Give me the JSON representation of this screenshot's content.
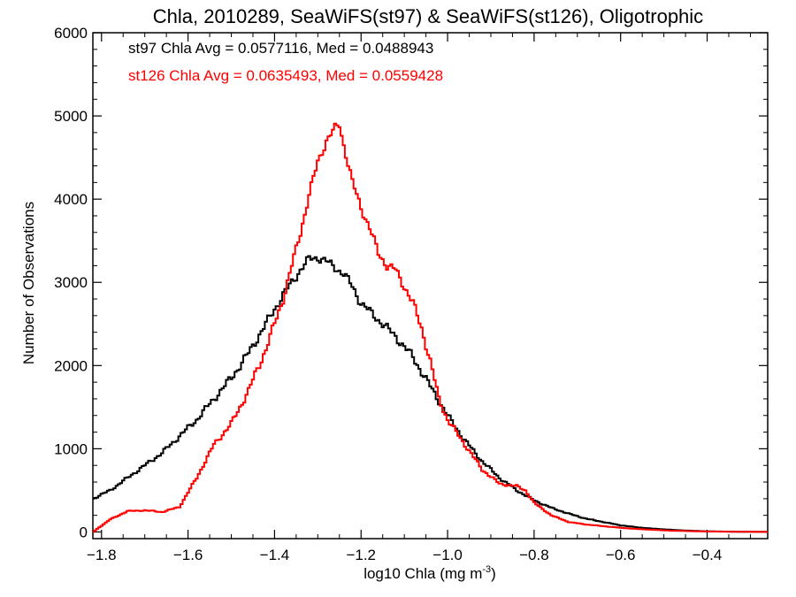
{
  "chart_data": {
    "type": "line",
    "title": "Chla, 2010289, SeaWiFS(st97) & SeaWiFS(st126), Oligotrophic",
    "xlabel": "log10 Chla (mg m",
    "xlabel_sup": "-3",
    "xlabel_close": ")",
    "ylabel": "Number of Observations",
    "xlim": [
      -1.82,
      -0.26
    ],
    "ylim": [
      -80,
      6000
    ],
    "xticks": [
      -1.8,
      -1.6,
      -1.4,
      -1.2,
      -1.0,
      -0.8,
      -0.6,
      -0.4
    ],
    "xtick_labels": [
      "−1.8",
      "−1.6",
      "−1.4",
      "−1.2",
      "−1.0",
      "−0.8",
      "−0.6",
      "−0.4"
    ],
    "yticks": [
      0,
      1000,
      2000,
      3000,
      4000,
      5000,
      6000
    ],
    "ytick_labels": [
      "0",
      "1000",
      "2000",
      "3000",
      "4000",
      "5000",
      "6000"
    ],
    "annotations": [
      {
        "text": "st97 Chla Avg = 0.0577116, Med = 0.0488943",
        "color": "#000000"
      },
      {
        "text": "st126 Chla Avg = 0.0635493, Med = 0.0559428",
        "color": "#ff0000"
      }
    ],
    "series": [
      {
        "color": "#000000",
        "x": [
          -1.82,
          -1.78,
          -1.74,
          -1.7,
          -1.66,
          -1.62,
          -1.58,
          -1.54,
          -1.5,
          -1.46,
          -1.42,
          -1.38,
          -1.34,
          -1.32,
          -1.3,
          -1.28,
          -1.26,
          -1.24,
          -1.22,
          -1.2,
          -1.16,
          -1.12,
          -1.08,
          -1.04,
          -1.0,
          -0.96,
          -0.92,
          -0.88,
          -0.84,
          -0.8,
          -0.76,
          -0.72,
          -0.68,
          -0.64,
          -0.6,
          -0.56,
          -0.52,
          -0.48,
          -0.44,
          -0.4,
          -0.36,
          -0.32,
          -0.28,
          -0.26
        ],
        "y": [
          400,
          500,
          650,
          800,
          950,
          1150,
          1350,
          1600,
          1850,
          2150,
          2500,
          2850,
          3150,
          3280,
          3300,
          3250,
          3180,
          3100,
          2950,
          2750,
          2550,
          2350,
          2100,
          1750,
          1400,
          1100,
          850,
          650,
          500,
          380,
          290,
          220,
          160,
          120,
          80,
          55,
          38,
          25,
          15,
          8,
          5,
          3,
          2,
          2
        ]
      },
      {
        "color": "#ff0000",
        "x": [
          -1.82,
          -1.78,
          -1.74,
          -1.7,
          -1.66,
          -1.62,
          -1.58,
          -1.56,
          -1.54,
          -1.5,
          -1.46,
          -1.42,
          -1.38,
          -1.36,
          -1.34,
          -1.32,
          -1.3,
          -1.28,
          -1.26,
          -1.25,
          -1.24,
          -1.22,
          -1.2,
          -1.18,
          -1.16,
          -1.14,
          -1.12,
          -1.1,
          -1.08,
          -1.06,
          -1.04,
          -1.02,
          -1.0,
          -0.96,
          -0.92,
          -0.88,
          -0.84,
          -0.82,
          -0.8,
          -0.76,
          -0.72,
          -0.68,
          -0.64,
          -0.6,
          -0.56,
          -0.52,
          -0.48,
          -0.44,
          -0.4,
          -0.36,
          -0.32,
          -0.28,
          -0.26
        ],
        "y": [
          0,
          150,
          250,
          260,
          240,
          300,
          650,
          850,
          1050,
          1300,
          1700,
          2200,
          2800,
          3200,
          3600,
          4050,
          4450,
          4700,
          4850,
          4900,
          4650,
          4200,
          3900,
          3650,
          3350,
          3200,
          3150,
          2950,
          2750,
          2450,
          2050,
          1600,
          1350,
          1050,
          750,
          580,
          550,
          500,
          350,
          200,
          120,
          90,
          70,
          50,
          35,
          25,
          15,
          10,
          6,
          4,
          2,
          1,
          1
        ]
      }
    ]
  }
}
